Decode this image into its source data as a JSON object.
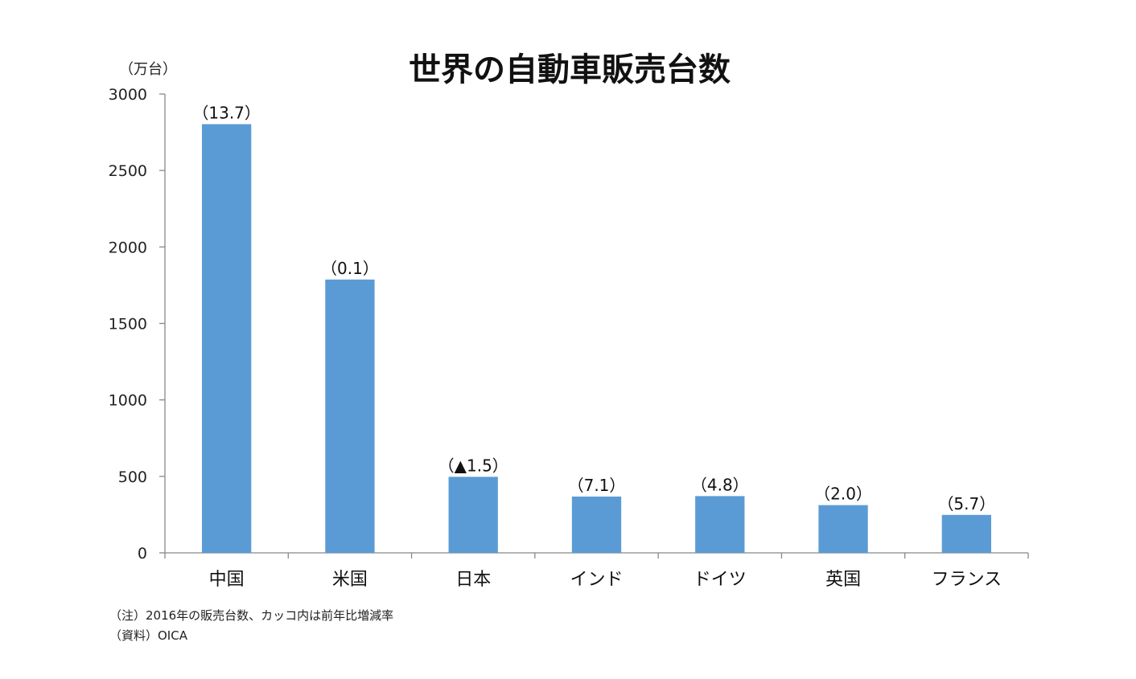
{
  "chart_data": {
    "type": "bar",
    "title": "世界の自動車販売台数",
    "unit_label": "（万台）",
    "categories": [
      "中国",
      "米国",
      "日本",
      "インド",
      "ドイツ",
      "英国",
      "フランス"
    ],
    "values": [
      2803,
      1787,
      497,
      368,
      371,
      312,
      248
    ],
    "data_labels": [
      "（13.7）",
      "（0.1）",
      "（▲1.5）",
      "（7.1）",
      "（4.8）",
      "（2.0）",
      "（5.7）"
    ],
    "ylim": [
      0,
      3000
    ],
    "yticks": [
      0,
      500,
      1000,
      1500,
      2000,
      2500,
      3000
    ],
    "bar_color": "#5B9BD5",
    "grid": false
  },
  "notes": {
    "note1": "（注）2016年の販売台数、カッコ内は前年比増減率",
    "note2": "（資料）OICA"
  }
}
